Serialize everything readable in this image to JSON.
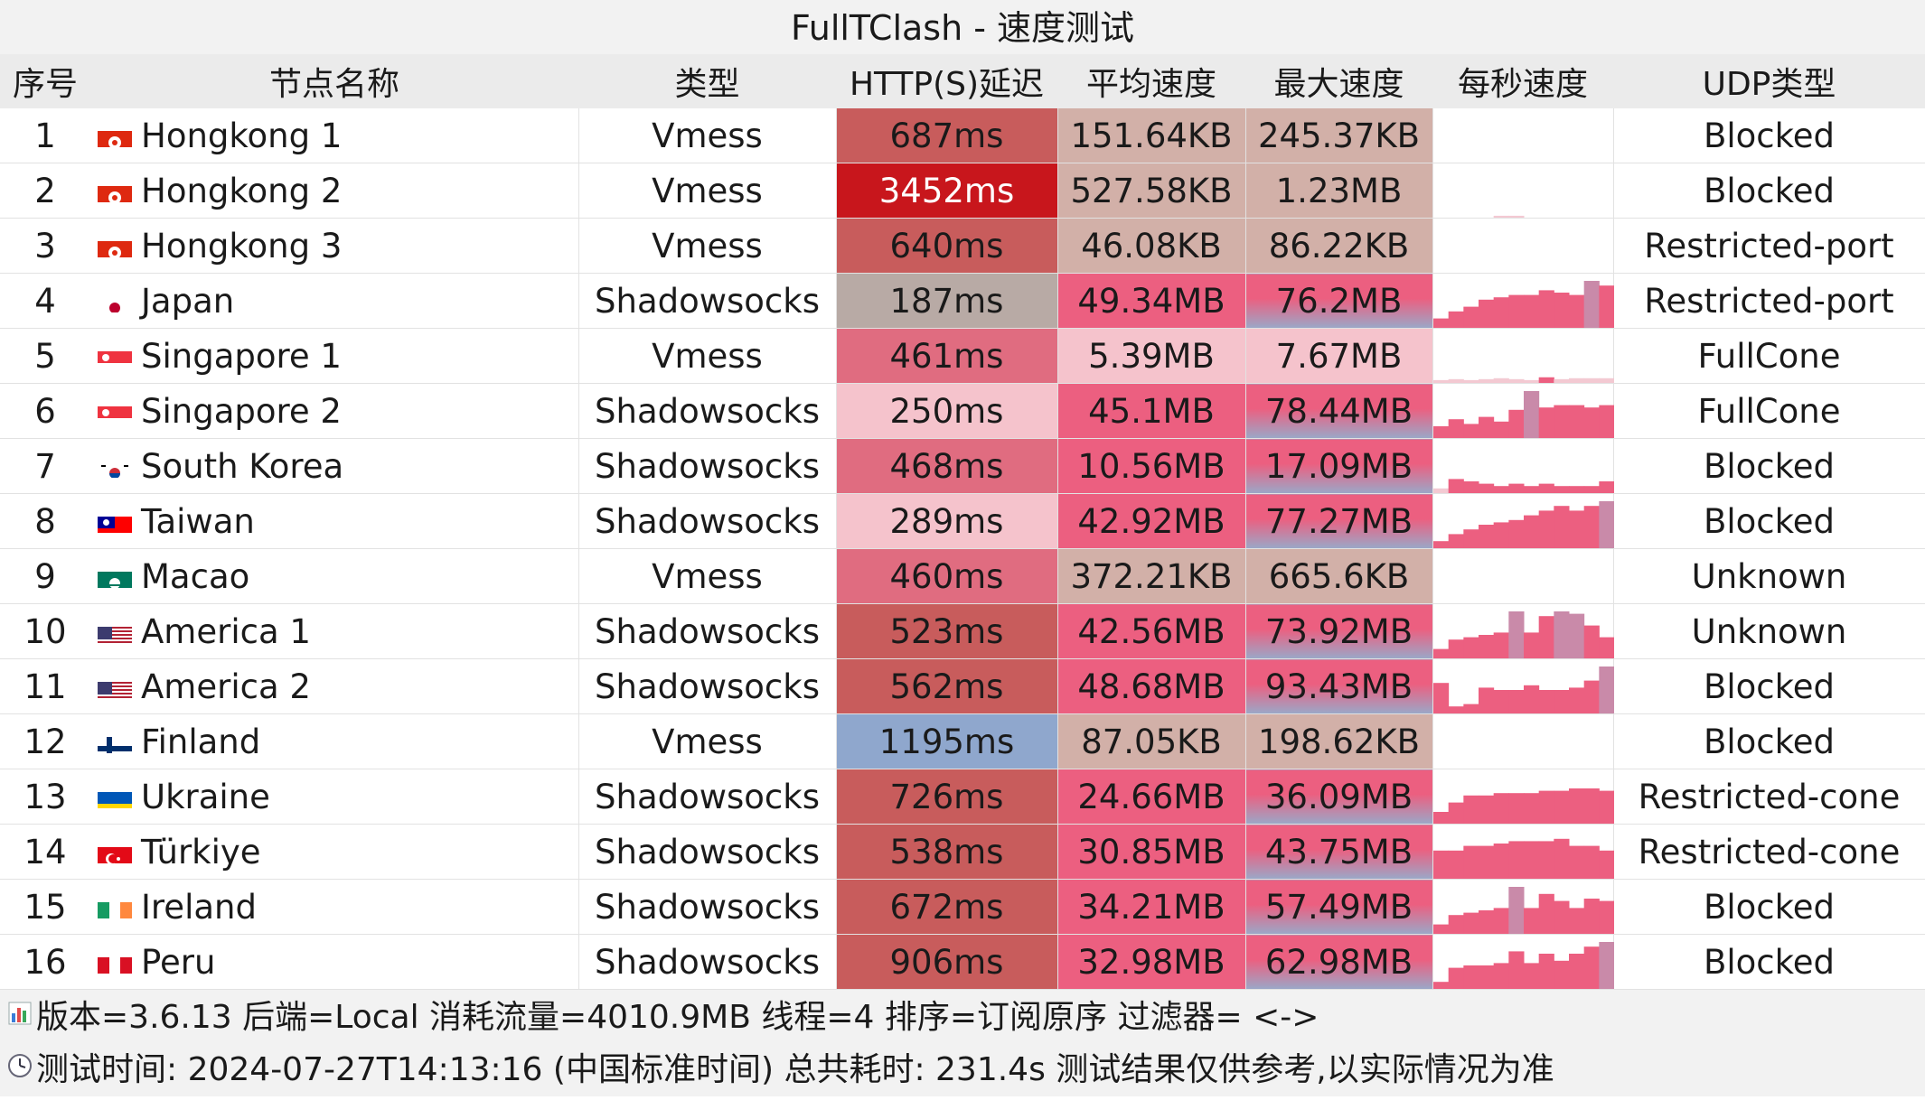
{
  "window": {
    "title": "FullTClash - 速度测试"
  },
  "headers": {
    "index": "序号",
    "node": "节点名称",
    "type": "类型",
    "latency": "HTTP(S)延迟",
    "avg_speed": "平均速度",
    "max_speed": "最大速度",
    "per_second": "每秒速度",
    "udp": "UDP类型"
  },
  "colors": {
    "latency_bg": [
      "#c85c5c",
      "#c8161c",
      "#c85c5c",
      "#b8aaa5",
      "#e06c80",
      "#f5c3cc",
      "#e06c80",
      "#f5c3cc",
      "#e06c80",
      "#c85c5c",
      "#c85c5c",
      "#8fa7cd",
      "#c85c5c",
      "#c85c5c",
      "#c85c5c",
      "#c85c5c"
    ],
    "speed_kb": "#d2b0a8",
    "speed_mb_light": "#f5c3cc",
    "speed_mb_pink": "#ec5f80",
    "speed_max_grad": "#9aa8c8",
    "chart_pink": "#ec5f80"
  },
  "rows": [
    {
      "index": "1",
      "flag": "hk-flag-icon",
      "node": "Hongkong 1",
      "type": "Vmess",
      "latency": "687ms",
      "avg": "151.64KB",
      "max": "245.37KB",
      "bars": [],
      "udp": "Blocked"
    },
    {
      "index": "2",
      "flag": "hk-flag-icon",
      "node": "Hongkong 2",
      "type": "Vmess",
      "latency": "3452ms",
      "avg": "527.58KB",
      "max": "1.23MB",
      "bars": [
        0,
        0,
        0,
        0,
        0.04,
        0.04,
        0,
        0,
        0,
        0,
        0,
        0
      ],
      "udp": "Blocked"
    },
    {
      "index": "3",
      "flag": "hk-flag-icon",
      "node": "Hongkong 3",
      "type": "Vmess",
      "latency": "640ms",
      "avg": "46.08KB",
      "max": "86.22KB",
      "bars": [],
      "udp": "Restricted-port"
    },
    {
      "index": "4",
      "flag": "jp-flag-icon",
      "node": "Japan",
      "type": "Shadowsocks",
      "latency": "187ms",
      "avg": "49.34MB",
      "max": "76.2MB",
      "bars": [
        0.2,
        0.35,
        0.45,
        0.6,
        0.65,
        0.7,
        0.7,
        0.8,
        0.75,
        0.7,
        1.0,
        0.9
      ],
      "udp": "Restricted-port"
    },
    {
      "index": "5",
      "flag": "sg-flag-icon",
      "node": "Singapore 1",
      "type": "Vmess",
      "latency": "461ms",
      "avg": "5.39MB",
      "max": "7.67MB",
      "bars": [
        0.06,
        0.08,
        0.06,
        0.08,
        0.1,
        0.08,
        0.06,
        0.12,
        0.08,
        0.1,
        0.1,
        0.1
      ],
      "udp": "FullCone"
    },
    {
      "index": "6",
      "flag": "sg-flag-icon",
      "node": "Singapore 2",
      "type": "Shadowsocks",
      "latency": "250ms",
      "avg": "45.1MB",
      "max": "78.44MB",
      "bars": [
        0.25,
        0.4,
        0.3,
        0.45,
        0.35,
        0.6,
        1.0,
        0.65,
        0.7,
        0.7,
        0.65,
        0.7
      ],
      "udp": "FullCone"
    },
    {
      "index": "7",
      "flag": "kr-flag-icon",
      "node": "South Korea",
      "type": "Shadowsocks",
      "latency": "468ms",
      "avg": "10.56MB",
      "max": "17.09MB",
      "bars": [
        0.1,
        0.3,
        0.25,
        0.2,
        0.15,
        0.2,
        0.15,
        0.2,
        0.15,
        0.15,
        0.15,
        0.25
      ],
      "udp": "Blocked"
    },
    {
      "index": "8",
      "flag": "tw-flag-icon",
      "node": "Taiwan",
      "type": "Shadowsocks",
      "latency": "289ms",
      "avg": "42.92MB",
      "max": "77.27MB",
      "bars": [
        0.15,
        0.3,
        0.4,
        0.5,
        0.55,
        0.6,
        0.7,
        0.8,
        0.9,
        0.8,
        0.9,
        1.0
      ],
      "udp": "Blocked"
    },
    {
      "index": "9",
      "flag": "mo-flag-icon",
      "node": "Macao",
      "type": "Vmess",
      "latency": "460ms",
      "avg": "372.21KB",
      "max": "665.6KB",
      "bars": [],
      "udp": "Unknown"
    },
    {
      "index": "10",
      "flag": "us-flag-icon",
      "node": "America 1",
      "type": "Shadowsocks",
      "latency": "523ms",
      "avg": "42.56MB",
      "max": "73.92MB",
      "bars": [
        0.2,
        0.4,
        0.45,
        0.5,
        0.55,
        1.0,
        0.55,
        0.9,
        1.0,
        0.95,
        0.7,
        0.45
      ],
      "udp": "Unknown"
    },
    {
      "index": "11",
      "flag": "us-flag-icon",
      "node": "America 2",
      "type": "Shadowsocks",
      "latency": "562ms",
      "avg": "48.68MB",
      "max": "93.43MB",
      "bars": [
        0.65,
        0.15,
        0.2,
        0.55,
        0.5,
        0.5,
        0.6,
        0.5,
        0.5,
        0.55,
        0.7,
        1.0
      ],
      "udp": "Blocked"
    },
    {
      "index": "12",
      "flag": "fi-flag-icon",
      "node": "Finland",
      "type": "Vmess",
      "latency": "1195ms",
      "avg": "87.05KB",
      "max": "198.62KB",
      "bars": [],
      "udp": "Blocked"
    },
    {
      "index": "13",
      "flag": "ua-flag-icon",
      "node": "Ukraine",
      "type": "Shadowsocks",
      "latency": "726ms",
      "avg": "24.66MB",
      "max": "36.09MB",
      "bars": [
        0.25,
        0.45,
        0.6,
        0.6,
        0.65,
        0.65,
        0.65,
        0.7,
        0.7,
        0.75,
        0.75,
        0.7
      ],
      "udp": "Restricted-cone"
    },
    {
      "index": "14",
      "flag": "tr-flag-icon",
      "node": "Türkiye",
      "type": "Shadowsocks",
      "latency": "538ms",
      "avg": "30.85MB",
      "max": "43.75MB",
      "bars": [
        0.6,
        0.6,
        0.7,
        0.7,
        0.75,
        0.8,
        0.8,
        0.8,
        0.85,
        0.7,
        0.7,
        0.6
      ],
      "udp": "Restricted-cone"
    },
    {
      "index": "15",
      "flag": "ie-flag-icon",
      "node": "Ireland",
      "type": "Shadowsocks",
      "latency": "672ms",
      "avg": "34.21MB",
      "max": "57.49MB",
      "bars": [
        0.2,
        0.4,
        0.45,
        0.5,
        0.55,
        1.0,
        0.55,
        0.85,
        0.7,
        0.55,
        0.75,
        0.7
      ],
      "udp": "Blocked"
    },
    {
      "index": "16",
      "flag": "pe-flag-icon",
      "node": "Peru",
      "type": "Shadowsocks",
      "latency": "906ms",
      "avg": "32.98MB",
      "max": "62.98MB",
      "bars": [
        0.15,
        0.45,
        0.5,
        0.5,
        0.55,
        0.8,
        0.55,
        0.75,
        0.6,
        0.75,
        0.9,
        1.0
      ],
      "udp": "Blocked"
    }
  ],
  "footer": {
    "line1": "版本=3.6.13  后端=Local  消耗流量=4010.9MB   线程=4  排序=订阅原序  过滤器= <->",
    "line2": "测试时间: 2024-07-27T14:13:16 (中国标准时间) 总共耗时: 231.4s 测试结果仅供参考,以实际情况为准",
    "icon1": "bar-chart-icon",
    "icon2": "clock-icon"
  }
}
